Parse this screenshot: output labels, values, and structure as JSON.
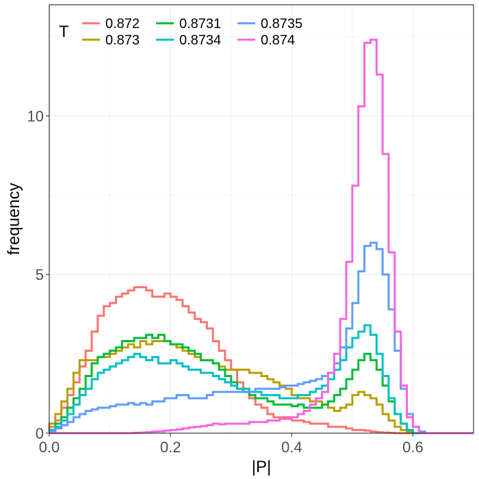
{
  "chart_data": {
    "type": "line",
    "step": true,
    "xlabel": "|P|",
    "ylabel": "frequency",
    "xlim": [
      0,
      0.7
    ],
    "ylim": [
      0,
      13.5
    ],
    "xticks": [
      0.0,
      0.2,
      0.4,
      0.6
    ],
    "xtick_labels": [
      "0.0",
      "0.2",
      "0.4",
      "0.6"
    ],
    "yticks": [
      0,
      5,
      10
    ],
    "ytick_labels": [
      "0",
      "5",
      "10"
    ],
    "grid": true,
    "legend": {
      "title": "T",
      "position": "top-left-inside"
    },
    "bin_width": 0.01,
    "series": [
      {
        "name": "0.872",
        "color": "#f8766d",
        "x": [
          0.0,
          0.01,
          0.02,
          0.03,
          0.04,
          0.05,
          0.06,
          0.07,
          0.08,
          0.09,
          0.1,
          0.11,
          0.12,
          0.13,
          0.14,
          0.15,
          0.16,
          0.17,
          0.18,
          0.19,
          0.2,
          0.21,
          0.22,
          0.23,
          0.24,
          0.25,
          0.26,
          0.27,
          0.28,
          0.29,
          0.3,
          0.31,
          0.32,
          0.33,
          0.34,
          0.35,
          0.36,
          0.37,
          0.38,
          0.39,
          0.4,
          0.41,
          0.42,
          0.43,
          0.44,
          0.45,
          0.46,
          0.47,
          0.48,
          0.49,
          0.5,
          0.51,
          0.52,
          0.53,
          0.54,
          0.55,
          0.56,
          0.57,
          0.58,
          0.59,
          0.6,
          0.61,
          0.62,
          0.63,
          0.64,
          0.65,
          0.66,
          0.67,
          0.68,
          0.69
        ],
        "y": [
          0.2,
          0.4,
          0.8,
          1.2,
          1.6,
          2.1,
          2.6,
          3.2,
          3.7,
          4.0,
          4.1,
          4.3,
          4.4,
          4.5,
          4.6,
          4.6,
          4.5,
          4.3,
          4.3,
          4.4,
          4.3,
          4.2,
          4.0,
          3.8,
          3.6,
          3.5,
          3.3,
          2.9,
          2.6,
          2.3,
          2.0,
          1.6,
          1.4,
          1.1,
          0.9,
          0.8,
          0.6,
          0.5,
          0.5,
          0.5,
          0.4,
          0.4,
          0.35,
          0.3,
          0.3,
          0.3,
          0.2,
          0.2,
          0.2,
          0.15,
          0.1,
          0.1,
          0.08,
          0.05,
          0.03,
          0.02,
          0.01,
          0.0,
          0.0,
          0.0,
          0.0,
          0.0,
          0.0,
          0.0,
          0.0,
          0.0,
          0.0,
          0.0,
          0.0,
          0.0
        ]
      },
      {
        "name": "0.873",
        "color": "#b79f00",
        "x": [
          0.0,
          0.01,
          0.02,
          0.03,
          0.04,
          0.05,
          0.06,
          0.07,
          0.08,
          0.09,
          0.1,
          0.11,
          0.12,
          0.13,
          0.14,
          0.15,
          0.16,
          0.17,
          0.18,
          0.19,
          0.2,
          0.21,
          0.22,
          0.23,
          0.24,
          0.25,
          0.26,
          0.27,
          0.28,
          0.29,
          0.3,
          0.31,
          0.32,
          0.33,
          0.34,
          0.35,
          0.36,
          0.37,
          0.38,
          0.39,
          0.4,
          0.41,
          0.42,
          0.43,
          0.44,
          0.45,
          0.46,
          0.47,
          0.48,
          0.49,
          0.5,
          0.51,
          0.52,
          0.53,
          0.54,
          0.55,
          0.56,
          0.57,
          0.58,
          0.59,
          0.6,
          0.61,
          0.62,
          0.63,
          0.64,
          0.65,
          0.66,
          0.67,
          0.68,
          0.69
        ],
        "y": [
          0.3,
          0.6,
          1.0,
          1.4,
          1.9,
          2.3,
          2.3,
          2.3,
          2.4,
          2.4,
          2.5,
          2.6,
          2.7,
          2.8,
          2.7,
          2.9,
          2.8,
          2.9,
          2.9,
          2.9,
          2.8,
          2.7,
          2.6,
          2.5,
          2.4,
          2.3,
          2.3,
          2.2,
          2.1,
          2.0,
          2.0,
          2.0,
          2.0,
          1.9,
          1.9,
          1.8,
          1.7,
          1.6,
          1.5,
          1.4,
          1.2,
          1.1,
          1.1,
          1.0,
          1.0,
          0.9,
          0.8,
          0.7,
          0.8,
          0.9,
          1.2,
          1.3,
          1.2,
          1.1,
          0.9,
          0.6,
          0.4,
          0.2,
          0.1,
          0.05,
          0.0,
          0.0,
          0.0,
          0.0,
          0.0,
          0.0,
          0.0,
          0.0,
          0.0,
          0.0
        ]
      },
      {
        "name": "0.8731",
        "color": "#00ba38",
        "x": [
          0.0,
          0.01,
          0.02,
          0.03,
          0.04,
          0.05,
          0.06,
          0.07,
          0.08,
          0.09,
          0.1,
          0.11,
          0.12,
          0.13,
          0.14,
          0.15,
          0.16,
          0.17,
          0.18,
          0.19,
          0.2,
          0.21,
          0.22,
          0.23,
          0.24,
          0.25,
          0.26,
          0.27,
          0.28,
          0.29,
          0.3,
          0.31,
          0.32,
          0.33,
          0.34,
          0.35,
          0.36,
          0.37,
          0.38,
          0.39,
          0.4,
          0.41,
          0.42,
          0.43,
          0.44,
          0.45,
          0.46,
          0.47,
          0.48,
          0.49,
          0.5,
          0.51,
          0.52,
          0.53,
          0.54,
          0.55,
          0.56,
          0.57,
          0.58,
          0.59,
          0.6,
          0.61,
          0.62,
          0.63,
          0.64,
          0.65,
          0.66,
          0.67,
          0.68,
          0.69
        ],
        "y": [
          0.1,
          0.3,
          0.5,
          0.8,
          1.1,
          1.4,
          1.8,
          2.2,
          2.4,
          2.5,
          2.6,
          2.7,
          2.9,
          2.9,
          3.0,
          3.0,
          3.1,
          3.0,
          3.1,
          2.9,
          2.8,
          2.8,
          2.7,
          2.6,
          2.5,
          2.3,
          2.3,
          2.2,
          2.0,
          1.8,
          1.6,
          1.4,
          1.3,
          1.2,
          1.1,
          1.1,
          1.0,
          0.9,
          0.9,
          0.9,
          0.85,
          0.9,
          0.8,
          0.8,
          0.8,
          0.9,
          1.0,
          1.2,
          1.4,
          1.7,
          2.0,
          2.3,
          2.5,
          2.3,
          2.0,
          1.5,
          1.0,
          0.6,
          0.3,
          0.1,
          0.0,
          0.0,
          0.0,
          0.0,
          0.0,
          0.0,
          0.0,
          0.0,
          0.0,
          0.0
        ]
      },
      {
        "name": "0.8734",
        "color": "#00bfc4",
        "x": [
          0.0,
          0.01,
          0.02,
          0.03,
          0.04,
          0.05,
          0.06,
          0.07,
          0.08,
          0.09,
          0.1,
          0.11,
          0.12,
          0.13,
          0.14,
          0.15,
          0.16,
          0.17,
          0.18,
          0.19,
          0.2,
          0.21,
          0.22,
          0.23,
          0.24,
          0.25,
          0.26,
          0.27,
          0.28,
          0.29,
          0.3,
          0.31,
          0.32,
          0.33,
          0.34,
          0.35,
          0.36,
          0.37,
          0.38,
          0.39,
          0.4,
          0.41,
          0.42,
          0.43,
          0.44,
          0.45,
          0.46,
          0.47,
          0.48,
          0.49,
          0.5,
          0.51,
          0.52,
          0.53,
          0.54,
          0.55,
          0.56,
          0.57,
          0.58,
          0.59,
          0.6,
          0.61,
          0.62,
          0.63,
          0.64,
          0.65,
          0.66,
          0.67,
          0.68,
          0.69
        ],
        "y": [
          0.1,
          0.2,
          0.4,
          0.6,
          0.9,
          1.2,
          1.4,
          1.7,
          1.9,
          2.0,
          2.1,
          2.2,
          2.3,
          2.4,
          2.5,
          2.4,
          2.3,
          2.4,
          2.2,
          2.2,
          2.3,
          2.2,
          2.1,
          2.0,
          2.0,
          1.9,
          1.9,
          1.8,
          1.7,
          1.6,
          1.5,
          1.4,
          1.4,
          1.3,
          1.3,
          1.2,
          1.2,
          1.2,
          1.1,
          1.1,
          1.1,
          1.2,
          1.2,
          1.3,
          1.4,
          1.5,
          1.7,
          2.0,
          2.3,
          2.7,
          3.0,
          3.2,
          3.4,
          3.1,
          2.5,
          1.8,
          1.1,
          0.6,
          0.3,
          0.1,
          0.0,
          0.0,
          0.0,
          0.0,
          0.0,
          0.0,
          0.0,
          0.0,
          0.0,
          0.0
        ]
      },
      {
        "name": "0.8735",
        "color": "#619cff",
        "x": [
          0.0,
          0.01,
          0.02,
          0.03,
          0.04,
          0.05,
          0.06,
          0.07,
          0.08,
          0.09,
          0.1,
          0.11,
          0.12,
          0.13,
          0.14,
          0.15,
          0.16,
          0.17,
          0.18,
          0.19,
          0.2,
          0.21,
          0.22,
          0.23,
          0.24,
          0.25,
          0.26,
          0.27,
          0.28,
          0.29,
          0.3,
          0.31,
          0.32,
          0.33,
          0.34,
          0.35,
          0.36,
          0.37,
          0.38,
          0.39,
          0.4,
          0.41,
          0.42,
          0.43,
          0.44,
          0.45,
          0.46,
          0.47,
          0.48,
          0.49,
          0.5,
          0.51,
          0.52,
          0.53,
          0.54,
          0.55,
          0.56,
          0.57,
          0.58,
          0.59,
          0.6,
          0.61,
          0.62,
          0.63,
          0.64,
          0.65,
          0.66,
          0.67,
          0.68,
          0.69
        ],
        "y": [
          0.05,
          0.15,
          0.25,
          0.35,
          0.5,
          0.6,
          0.7,
          0.75,
          0.8,
          0.8,
          0.85,
          0.9,
          0.9,
          0.95,
          0.9,
          0.95,
          0.9,
          1.0,
          1.0,
          1.1,
          1.1,
          1.2,
          1.2,
          1.1,
          1.1,
          1.1,
          1.2,
          1.3,
          1.3,
          1.3,
          1.3,
          1.3,
          1.3,
          1.3,
          1.4,
          1.4,
          1.4,
          1.4,
          1.45,
          1.5,
          1.5,
          1.55,
          1.6,
          1.65,
          1.7,
          1.8,
          1.9,
          2.2,
          2.7,
          3.3,
          4.1,
          5.1,
          5.9,
          6.0,
          5.8,
          5.0,
          3.9,
          2.6,
          1.4,
          0.6,
          0.2,
          0.05,
          0.0,
          0.0,
          0.0,
          0.0,
          0.0,
          0.0,
          0.0,
          0.0
        ]
      },
      {
        "name": "0.874",
        "color": "#f564e3",
        "x": [
          0.0,
          0.01,
          0.02,
          0.03,
          0.04,
          0.05,
          0.06,
          0.07,
          0.08,
          0.09,
          0.1,
          0.11,
          0.12,
          0.13,
          0.14,
          0.15,
          0.16,
          0.17,
          0.18,
          0.19,
          0.2,
          0.21,
          0.22,
          0.23,
          0.24,
          0.25,
          0.26,
          0.27,
          0.28,
          0.29,
          0.3,
          0.31,
          0.32,
          0.33,
          0.34,
          0.35,
          0.36,
          0.37,
          0.38,
          0.39,
          0.4,
          0.41,
          0.42,
          0.43,
          0.44,
          0.45,
          0.46,
          0.47,
          0.48,
          0.49,
          0.5,
          0.51,
          0.52,
          0.53,
          0.54,
          0.55,
          0.56,
          0.57,
          0.58,
          0.59,
          0.6,
          0.61,
          0.62,
          0.63,
          0.64,
          0.65,
          0.66,
          0.67,
          0.68,
          0.69
        ],
        "y": [
          0.0,
          0.0,
          0.0,
          0.0,
          0.0,
          0.0,
          0.0,
          0.0,
          0.0,
          0.0,
          0.0,
          0.0,
          0.0,
          0.0,
          0.01,
          0.02,
          0.03,
          0.05,
          0.06,
          0.08,
          0.1,
          0.12,
          0.15,
          0.18,
          0.2,
          0.22,
          0.25,
          0.3,
          0.28,
          0.3,
          0.3,
          0.3,
          0.3,
          0.35,
          0.35,
          0.35,
          0.4,
          0.4,
          0.45,
          0.45,
          0.5,
          0.6,
          0.7,
          0.9,
          1.1,
          1.3,
          1.9,
          2.5,
          3.6,
          5.4,
          7.8,
          10.3,
          12.3,
          12.4,
          11.3,
          8.8,
          5.7,
          3.2,
          1.5,
          0.5,
          0.2,
          0.0,
          0.0,
          0.0,
          0.0,
          0.0,
          0.0,
          0.0,
          0.0,
          0.0
        ]
      }
    ]
  }
}
